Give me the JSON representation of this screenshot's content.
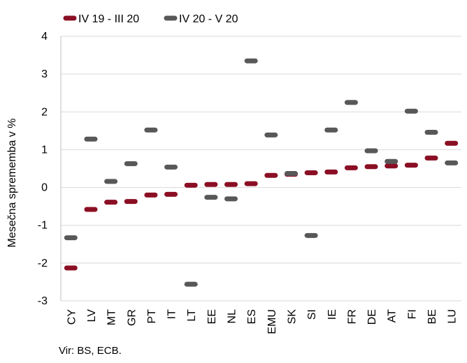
{
  "chart_data": {
    "type": "scatter",
    "title": "",
    "xlabel": "",
    "ylabel": "Mesečna sprememba v %",
    "ylim": [
      -3,
      4
    ],
    "yticks": [
      -3,
      -2,
      -1,
      0,
      1,
      2,
      3,
      4
    ],
    "grid": "horizontal",
    "legend_position": "top-left",
    "categories": [
      "CY",
      "LV",
      "MT",
      "GR",
      "PT",
      "IT",
      "LT",
      "EE",
      "NL",
      "ES",
      "EMU",
      "SK",
      "SI",
      "IE",
      "FR",
      "DE",
      "AT",
      "FI",
      "BE",
      "LU"
    ],
    "series": [
      {
        "name": "IV 19 - III 20",
        "color": "#8b0f24",
        "values": [
          -2.13,
          -0.58,
          -0.39,
          -0.37,
          -0.2,
          -0.18,
          0.06,
          0.08,
          0.08,
          0.1,
          0.32,
          0.35,
          0.39,
          0.41,
          0.52,
          0.55,
          0.57,
          0.59,
          0.78,
          1.17
        ]
      },
      {
        "name": "IV 20 - V 20",
        "color": "#585858",
        "values": [
          -1.33,
          1.28,
          0.16,
          0.63,
          1.52,
          0.54,
          -2.56,
          -0.26,
          -0.3,
          3.35,
          1.39,
          0.37,
          -1.27,
          1.52,
          2.25,
          0.97,
          0.69,
          2.02,
          1.46,
          0.65
        ]
      }
    ]
  },
  "source_text": "Vir: BS, ECB."
}
